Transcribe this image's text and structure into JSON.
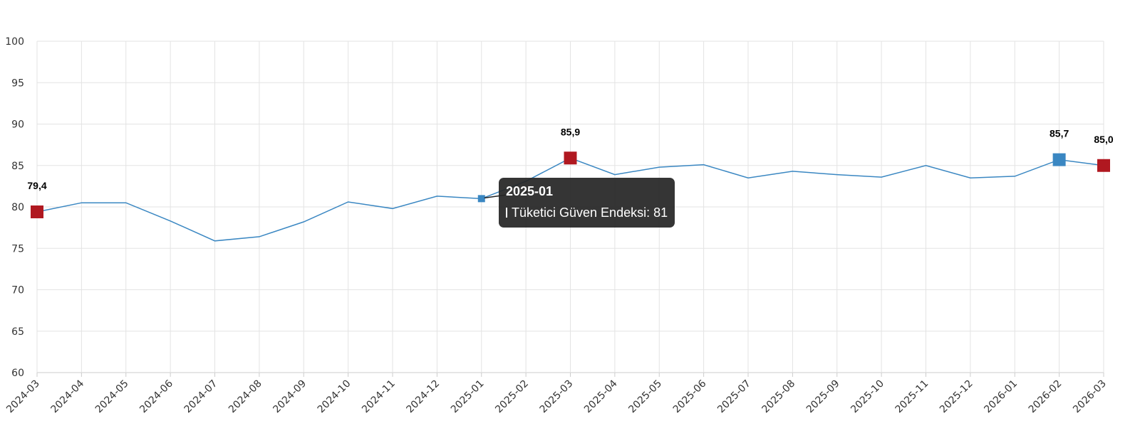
{
  "chart_data": {
    "type": "line",
    "x": [
      "2024-03",
      "2024-04",
      "2024-05",
      "2024-06",
      "2024-07",
      "2024-08",
      "2024-09",
      "2024-10",
      "2024-11",
      "2024-12",
      "2025-01",
      "2025-02",
      "2025-03",
      "2025-04",
      "2025-05",
      "2025-06",
      "2025-07",
      "2025-08",
      "2025-09",
      "2025-10",
      "2025-11",
      "2025-12",
      "2026-01",
      "2026-02",
      "2026-03"
    ],
    "series": [
      {
        "name": "Tüketici Güven Endeksi",
        "color": "#3a87c2",
        "values": [
          79.4,
          80.5,
          80.5,
          78.3,
          75.9,
          76.4,
          78.2,
          80.6,
          79.8,
          81.3,
          81.0,
          83.1,
          85.9,
          83.9,
          84.8,
          85.1,
          83.5,
          84.3,
          83.9,
          83.6,
          85.0,
          83.5,
          83.7,
          85.7,
          85.0
        ]
      }
    ],
    "ylim": [
      60,
      100
    ],
    "yticks": [
      "60",
      "65",
      "70",
      "75",
      "80",
      "85",
      "90",
      "95",
      "100"
    ],
    "grid": true,
    "highlight_color_low_high": "#b01820",
    "highlight_color_selected": "#3a87c2",
    "annotations": [
      {
        "x": "2024-03",
        "label": "79,4",
        "kind": "red"
      },
      {
        "x": "2025-03",
        "label": "85,9",
        "kind": "red"
      },
      {
        "x": "2026-02",
        "label": "85,7",
        "kind": "blue"
      },
      {
        "x": "2026-03",
        "label": "85,0",
        "kind": "red"
      }
    ],
    "tooltip": {
      "x": "2025-01",
      "title": "2025-01",
      "text": "Tüketici Güven Endeksi: 81"
    }
  }
}
